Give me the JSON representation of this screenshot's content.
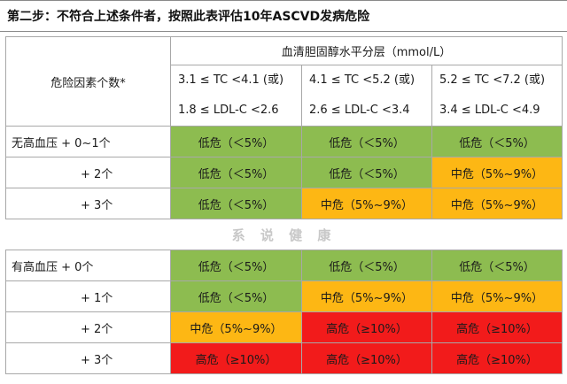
{
  "title": "第二步：不符合上述条件者，按照此表评估10年ASCVD发病危险",
  "header": {
    "factor_label": "危险因素个数*",
    "unit_label": "血清胆固醇水平分层（mmol/L）",
    "columns": [
      {
        "tc": "3.1 ≤ TC <4.1 (或)",
        "ldl": "1.8 ≤ LDL-C <2.6"
      },
      {
        "tc": "4.1 ≤ TC <5.2 (或)",
        "ldl": "2.6 ≤ LDL-C <3.4"
      },
      {
        "tc": "5.2 ≤ TC <7.2 (或)",
        "ldl": "3.4 ≤ LDL-C <4.9"
      }
    ]
  },
  "groups": {
    "no_hypertension": {
      "rows": [
        {
          "label": "无高血压 + 0~1个",
          "cells": [
            "低危（＜5%）",
            "低危（＜5%）",
            "低危（＜5%）"
          ],
          "levels": [
            "low",
            "low",
            "low"
          ]
        },
        {
          "label": "+ 2个",
          "cells": [
            "低危（＜5%）",
            "低危（＜5%）",
            "中危（5%~9%）"
          ],
          "levels": [
            "low",
            "low",
            "mid"
          ]
        },
        {
          "label": "+ 3个",
          "cells": [
            "低危（＜5%）",
            "中危（5%~9%）",
            "中危（5%~9%）"
          ],
          "levels": [
            "low",
            "mid",
            "mid"
          ]
        }
      ]
    },
    "separator_watermark": "系 说 健 康",
    "hypertension": {
      "rows": [
        {
          "label": "有高血压 + 0个",
          "cells": [
            "低危（＜5%）",
            "低危（＜5%）",
            "低危（＜5%）"
          ],
          "levels": [
            "low",
            "low",
            "low"
          ]
        },
        {
          "label": "+ 1个",
          "cells": [
            "低危（＜5%）",
            "中危（5%~9%）",
            "中危（5%~9%）"
          ],
          "levels": [
            "low",
            "mid",
            "mid"
          ]
        },
        {
          "label": "+ 2个",
          "cells": [
            "中危（5%~9%）",
            "高危（≥10%）",
            "高危（≥10%）"
          ],
          "levels": [
            "mid",
            "high",
            "high"
          ]
        },
        {
          "label": "+ 3个",
          "cells": [
            "高危（≥10%）",
            "高危（≥10%）",
            "高危（≥10%）"
          ],
          "levels": [
            "high",
            "high",
            "high"
          ]
        }
      ]
    }
  },
  "colors": {
    "low": "#8dbc50",
    "mid": "#fdb714",
    "high": "#f21b1b"
  }
}
